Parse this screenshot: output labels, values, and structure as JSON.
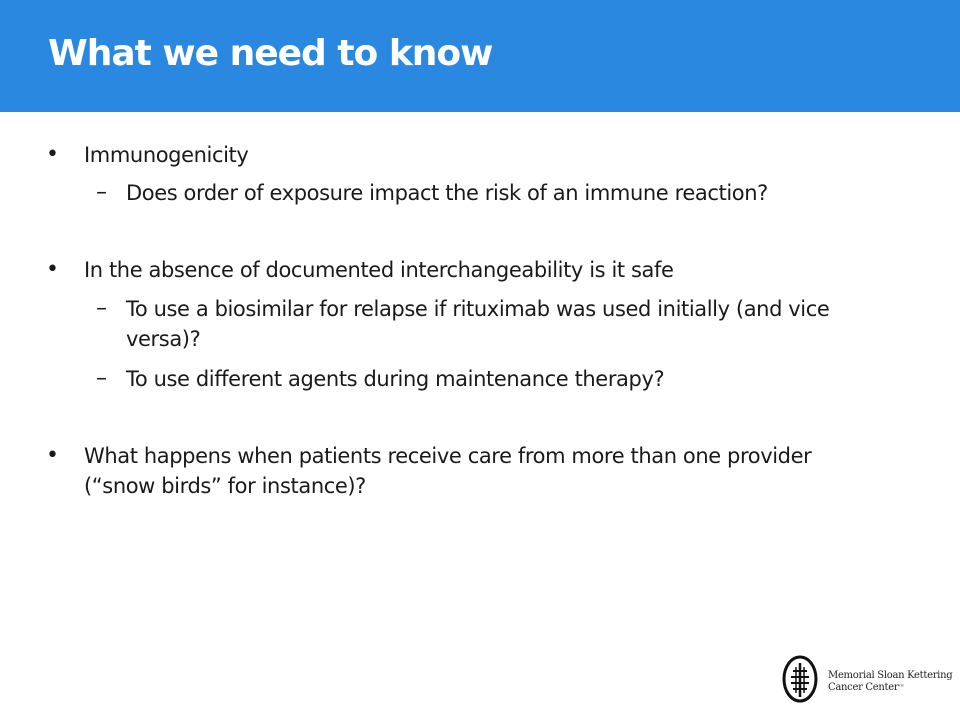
{
  "title": "What we need to know",
  "items": [
    {
      "marker": "•",
      "text": "Immunogenicity"
    },
    {
      "marker": "–",
      "text": "Does order of exposure impact the risk of an immune reaction?"
    },
    {
      "marker": "•",
      "text": "In the absence of documented interchangeability is it safe"
    },
    {
      "marker": "–",
      "text": "To use a biosimilar for relapse if rituximab was used initially (and vice"
    },
    {
      "marker": "",
      "text": "versa)?"
    },
    {
      "marker": "–",
      "text": "To use different agents during maintenance therapy?"
    },
    {
      "marker": "•",
      "text": "What happens when patients receive care from more than one provider"
    },
    {
      "marker": "",
      "text": "(“snow birds” for instance)?"
    }
  ],
  "logo": {
    "line1": "Memorial Sloan Kettering",
    "line2": "Cancer Center",
    "mark": "™"
  }
}
